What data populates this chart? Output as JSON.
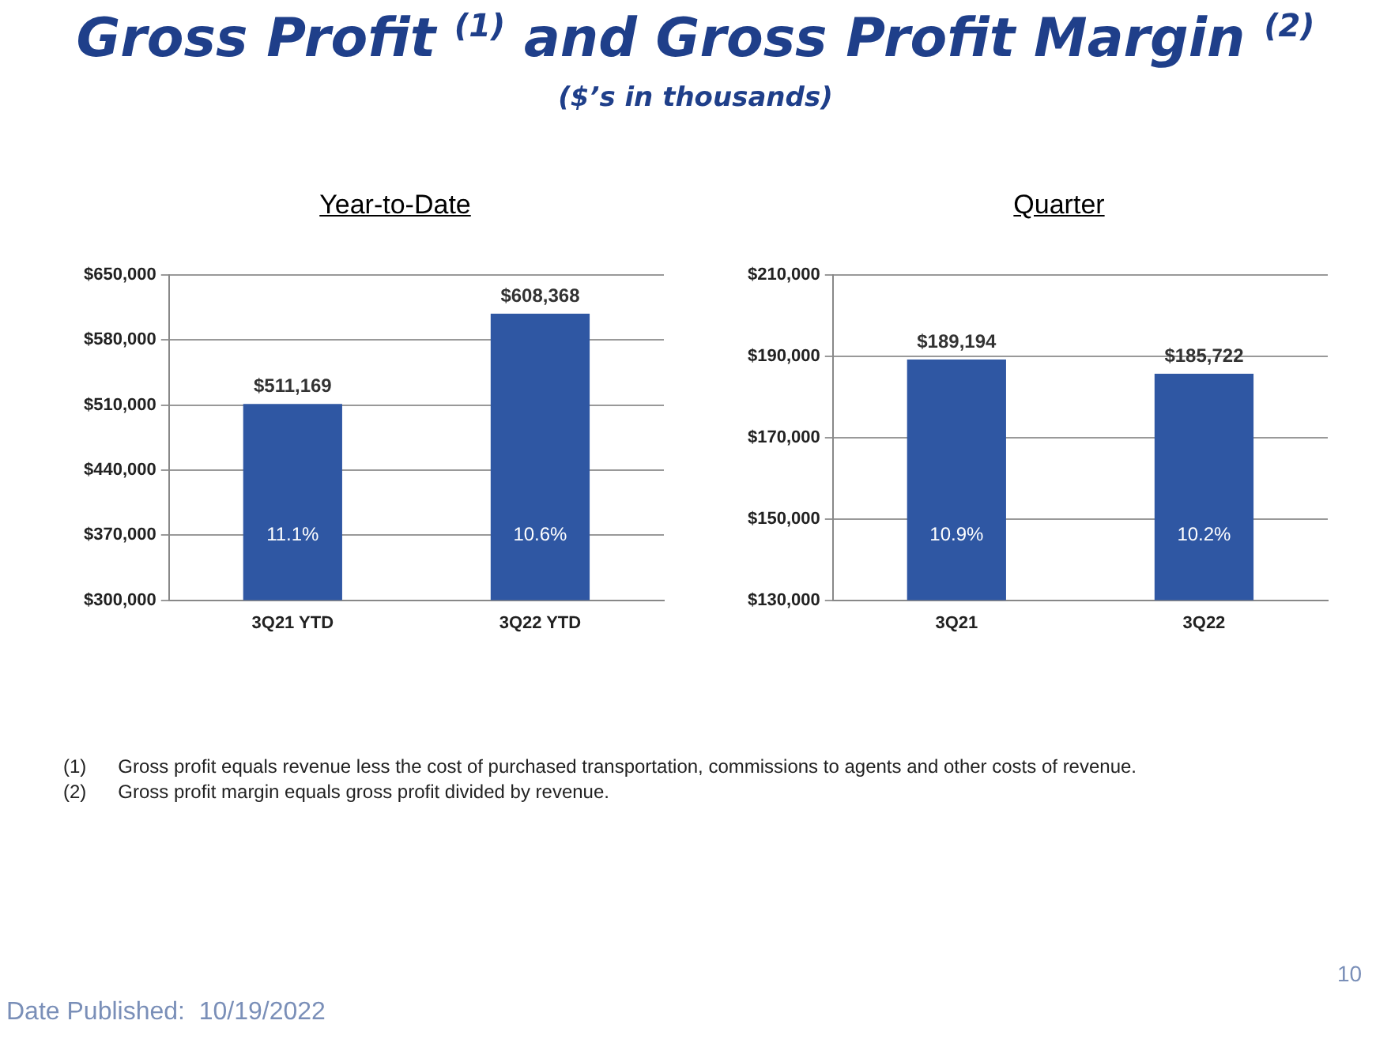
{
  "chart_data": [
    {
      "type": "other",
      "title": "Gross Profit $^{(1)}$ and Gross Profit Margin $^{(2)}$",
      "subtitle": "($’s in thousands)",
      "annotations": [
        "(1)\tGross profit equals revenue less the cost of purchased transportation, commissions to agents and other costs of revenue.",
        "(2)\tGross profit margin equals gross profit divided by revenue.",
        "Date Published:  10/19/2022",
        "10"
      ]
    },
    {
      "type": "bar",
      "title": "Year-to-Date",
      "categories": [
        "3Q21 YTD",
        "3Q22 YTD"
      ],
      "values": [
        511169,
        608368
      ],
      "color": "#2f57a3",
      "value_labels": [
        "$511,169",
        "$608,368"
      ],
      "ylim": [
        300000,
        650000
      ],
      "yticks": [
        {
          "value": 300000,
          "label": "$300,000"
        },
        {
          "value": 370000,
          "label": "$370,000"
        },
        {
          "value": 440000,
          "label": "$440,000"
        },
        {
          "value": 510000,
          "label": "$510,000"
        },
        {
          "value": 580000,
          "label": "$580,000"
        },
        {
          "value": 650000,
          "label": "$650,000"
        }
      ],
      "grid": "y",
      "legend": false,
      "annotations": [
        "11.1%",
        "10.6%"
      ]
    },
    {
      "type": "bar",
      "title": "Quarter",
      "categories": [
        "3Q21",
        "3Q22"
      ],
      "values": [
        189194,
        185722
      ],
      "color": "#2f57a3",
      "value_labels": [
        "$189,194",
        "$185,722"
      ],
      "ylim": [
        130000,
        210000
      ],
      "yticks": [
        {
          "value": 130000,
          "label": "$130,000"
        },
        {
          "value": 150000,
          "label": "$150,000"
        },
        {
          "value": 170000,
          "label": "$170,000"
        },
        {
          "value": 190000,
          "label": "$190,000"
        },
        {
          "value": 210000,
          "label": "$210,000"
        }
      ],
      "grid": "y",
      "legend": false,
      "annotations": [
        "10.9%",
        "10.2%"
      ]
    }
  ]
}
